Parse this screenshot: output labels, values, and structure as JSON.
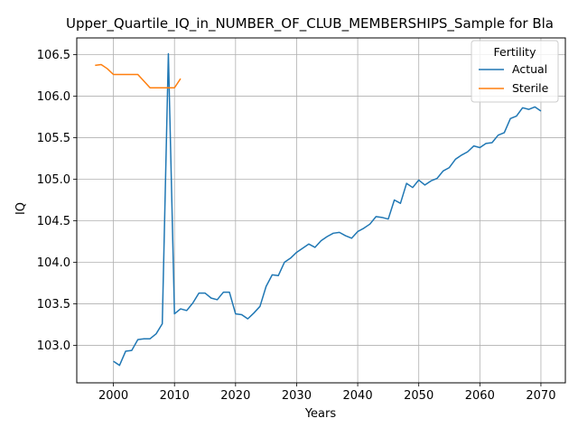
{
  "chart_data": {
    "type": "line",
    "title": "Upper_Quartile_IQ_in_NUMBER_OF_CLUB_MEMBERSHIPS_Sample for Bla",
    "xlabel": "Years",
    "ylabel": "IQ",
    "xlim": [
      1994,
      2074
    ],
    "ylim": [
      102.55,
      106.7
    ],
    "xticks": [
      2000,
      2010,
      2020,
      2030,
      2040,
      2050,
      2060,
      2070
    ],
    "yticks": [
      103.0,
      103.5,
      104.0,
      104.5,
      105.0,
      105.5,
      106.0,
      106.5
    ],
    "xtick_labels": [
      "2000",
      "2010",
      "2020",
      "2030",
      "2040",
      "2050",
      "2060",
      "2070"
    ],
    "ytick_labels": [
      "103.0",
      "103.5",
      "104.0",
      "104.5",
      "105.0",
      "105.5",
      "106.0",
      "106.5"
    ],
    "grid": true,
    "legend": {
      "title": "Fertility",
      "placement": "top-right"
    },
    "series": [
      {
        "name": "Actual",
        "color": "#1f77b4",
        "x": [
          2000,
          2001,
          2002,
          2003,
          2004,
          2005,
          2006,
          2007,
          2008,
          2009,
          2010,
          2011,
          2012,
          2013,
          2014,
          2015,
          2016,
          2017,
          2018,
          2019,
          2020,
          2021,
          2022,
          2023,
          2024,
          2025,
          2026,
          2027,
          2028,
          2029,
          2030,
          2031,
          2032,
          2033,
          2034,
          2035,
          2036,
          2037,
          2038,
          2039,
          2040,
          2041,
          2042,
          2043,
          2044,
          2045,
          2046,
          2047,
          2048,
          2049,
          2050,
          2051,
          2052,
          2053,
          2054,
          2055,
          2056,
          2057,
          2058,
          2059,
          2060,
          2061,
          2062,
          2063,
          2064,
          2065,
          2066,
          2067,
          2068,
          2069,
          2070
        ],
        "y": [
          102.81,
          102.76,
          102.93,
          102.94,
          103.07,
          103.08,
          103.08,
          103.14,
          103.26,
          106.51,
          103.38,
          103.44,
          103.42,
          103.51,
          103.63,
          103.63,
          103.57,
          103.55,
          103.64,
          103.64,
          103.38,
          103.37,
          103.32,
          103.39,
          103.47,
          103.71,
          103.85,
          103.84,
          104.0,
          104.05,
          104.12,
          104.17,
          104.22,
          104.18,
          104.26,
          104.31,
          104.35,
          104.36,
          104.32,
          104.29,
          104.37,
          104.41,
          104.46,
          104.55,
          104.54,
          104.52,
          104.75,
          104.71,
          104.95,
          104.9,
          104.99,
          104.93,
          104.98,
          105.01,
          105.1,
          105.14,
          105.24,
          105.29,
          105.33,
          105.4,
          105.38,
          105.43,
          105.44,
          105.53,
          105.56,
          105.73,
          105.76,
          105.86,
          105.84,
          105.87,
          105.82
        ]
      },
      {
        "name": "Sterile",
        "color": "#ff7f0e",
        "x": [
          1997,
          1998,
          1999,
          2000,
          2001,
          2002,
          2003,
          2004,
          2005,
          2006,
          2007,
          2008,
          2009,
          2010,
          2011
        ],
        "y": [
          106.37,
          106.38,
          106.33,
          106.26,
          106.26,
          106.26,
          106.26,
          106.26,
          106.18,
          106.1,
          106.1,
          106.1,
          106.1,
          106.1,
          106.21
        ]
      }
    ]
  }
}
